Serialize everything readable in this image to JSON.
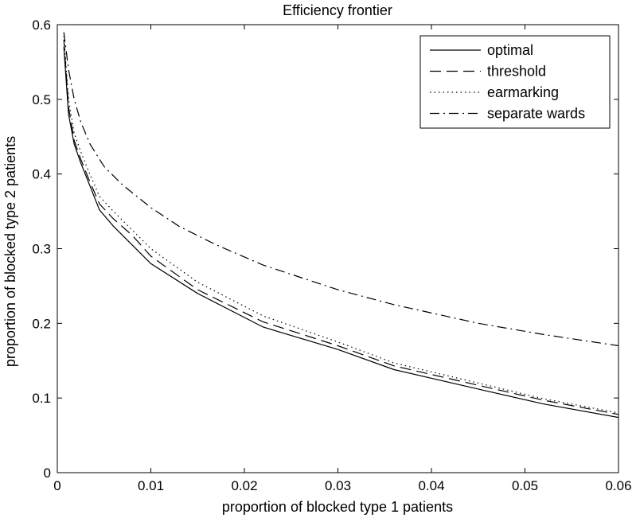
{
  "chart_data": {
    "type": "line",
    "title": "Efficiency frontier",
    "xlabel": "proportion of blocked type 1 patients",
    "ylabel": "proportion of blocked type 2 patients",
    "xlim": [
      0,
      0.06
    ],
    "ylim": [
      0,
      0.6
    ],
    "xticks": [
      0,
      0.01,
      0.02,
      0.03,
      0.04,
      0.05,
      0.06
    ],
    "xtick_labels": [
      "0",
      "0.01",
      "0.02",
      "0.03",
      "0.04",
      "0.05",
      "0.06"
    ],
    "yticks": [
      0,
      0.1,
      0.2,
      0.3,
      0.4,
      0.5,
      0.6
    ],
    "ytick_labels": [
      "0",
      "0.1",
      "0.2",
      "0.3",
      "0.4",
      "0.5",
      "0.6"
    ],
    "grid": false,
    "legend_position": "top-right",
    "series": [
      {
        "name": "optimal",
        "style": "solid",
        "color": "#000000",
        "x": [
          0.0007,
          0.0012,
          0.0018,
          0.0025,
          0.0033,
          0.0045,
          0.006,
          0.008,
          0.01,
          0.015,
          0.022,
          0.03,
          0.036,
          0.045,
          0.052,
          0.06
        ],
        "y": [
          0.57,
          0.48,
          0.44,
          0.415,
          0.39,
          0.352,
          0.33,
          0.305,
          0.28,
          0.24,
          0.195,
          0.165,
          0.138,
          0.112,
          0.092,
          0.074
        ]
      },
      {
        "name": "threshold",
        "style": "dashed",
        "color": "#000000",
        "x": [
          0.0007,
          0.0012,
          0.0018,
          0.0025,
          0.0033,
          0.0045,
          0.006,
          0.008,
          0.01,
          0.015,
          0.022,
          0.03,
          0.036,
          0.045,
          0.052,
          0.06
        ],
        "y": [
          0.58,
          0.49,
          0.445,
          0.42,
          0.395,
          0.36,
          0.34,
          0.318,
          0.29,
          0.245,
          0.202,
          0.17,
          0.143,
          0.117,
          0.097,
          0.078
        ]
      },
      {
        "name": "earmarking",
        "style": "dotted",
        "color": "#000000",
        "x": [
          0.0007,
          0.0012,
          0.0018,
          0.0025,
          0.0033,
          0.0045,
          0.006,
          0.008,
          0.01,
          0.015,
          0.022,
          0.03,
          0.036,
          0.045,
          0.052,
          0.06
        ],
        "y": [
          0.585,
          0.5,
          0.455,
          0.43,
          0.405,
          0.37,
          0.35,
          0.325,
          0.3,
          0.255,
          0.21,
          0.175,
          0.147,
          0.12,
          0.099,
          0.08
        ]
      },
      {
        "name": "separate wards",
        "style": "dashdot",
        "color": "#000000",
        "x": [
          0.0007,
          0.0012,
          0.0018,
          0.0025,
          0.0035,
          0.005,
          0.007,
          0.01,
          0.013,
          0.017,
          0.022,
          0.03,
          0.036,
          0.045,
          0.052,
          0.06
        ],
        "y": [
          0.59,
          0.54,
          0.5,
          0.47,
          0.44,
          0.41,
          0.385,
          0.355,
          0.33,
          0.305,
          0.278,
          0.245,
          0.225,
          0.2,
          0.185,
          0.17
        ]
      }
    ]
  }
}
